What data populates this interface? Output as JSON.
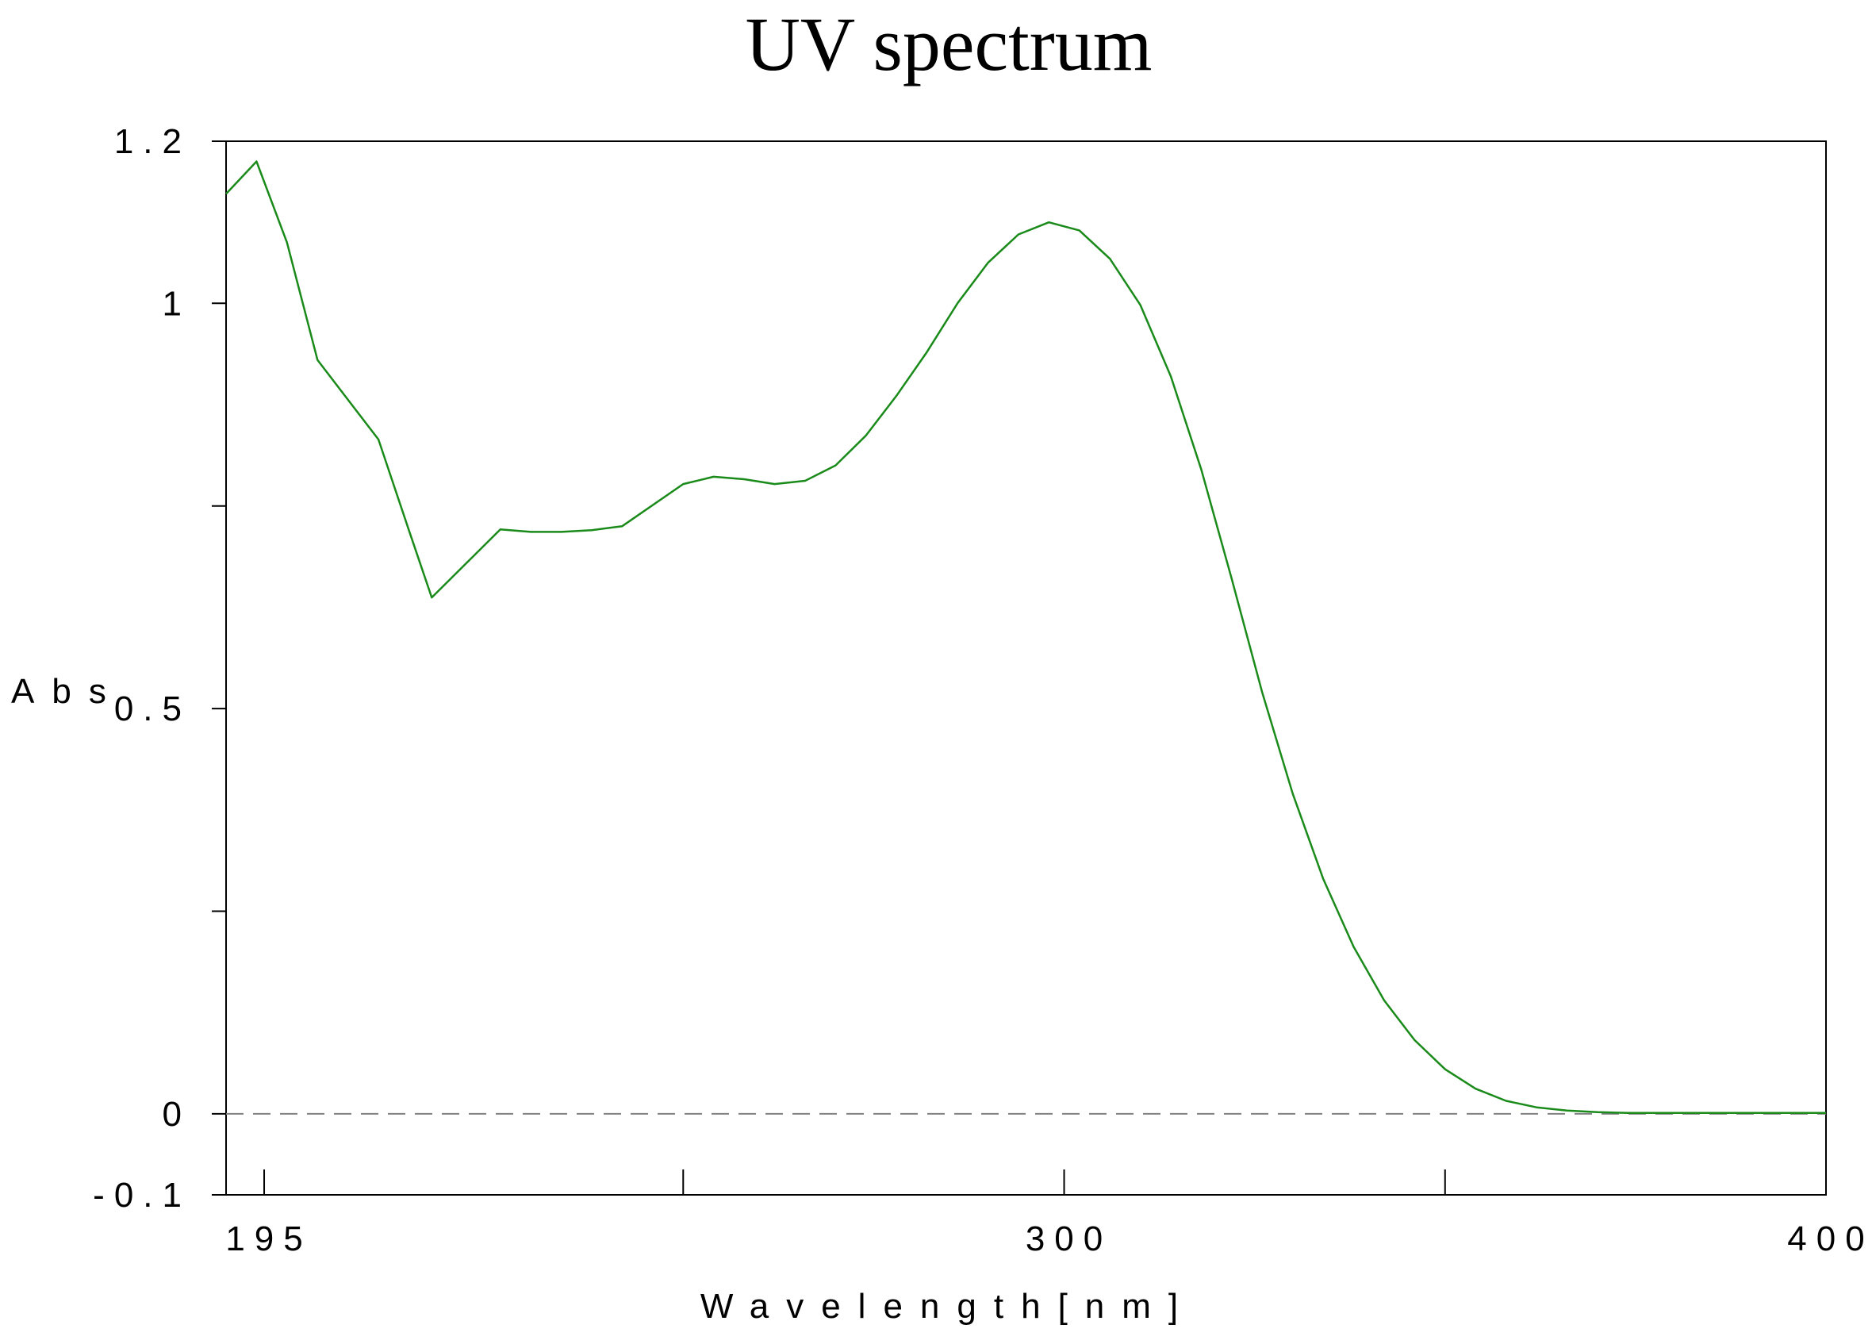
{
  "chart_data": {
    "type": "line",
    "title": "UV spectrum",
    "xlabel": "Wavelength[nm]",
    "ylabel": "Abs",
    "xlim": [
      190,
      400
    ],
    "ylim": [
      -0.1,
      1.2
    ],
    "x_tick_labels": [
      {
        "value": 195,
        "label": "195"
      },
      {
        "value": 300,
        "label": "300"
      },
      {
        "value": 400,
        "label": "400"
      }
    ],
    "x_minor_ticks": [
      250,
      350
    ],
    "y_tick_labels": [
      {
        "value": 1.2,
        "label": "1.2"
      },
      {
        "value": 1,
        "label": "1"
      },
      {
        "value": 0.5,
        "label": "0.5"
      },
      {
        "value": 0,
        "label": "0"
      },
      {
        "value": -0.1,
        "label": "-0.1"
      }
    ],
    "y_minor_ticks": [
      0.75,
      0.25
    ],
    "baseline": 0,
    "line_color": "#1a8a1a",
    "baseline_color": "#808080",
    "grid": false,
    "series": [
      {
        "x": [
          190,
          194,
          198,
          202,
          210,
          214,
          217,
          226,
          230,
          234,
          238,
          242,
          250,
          254,
          258,
          262,
          266,
          270,
          274,
          278,
          282,
          286,
          290,
          294,
          298,
          302,
          306,
          310,
          314,
          318,
          322,
          326,
          330,
          334,
          338,
          342,
          346,
          350,
          354,
          358,
          362,
          366,
          370,
          374,
          378,
          382,
          386,
          390,
          394,
          398,
          400
        ],
        "y": [
          1.135,
          1.175,
          1.075,
          0.93,
          0.832,
          0.72,
          0.637,
          0.721,
          0.718,
          0.718,
          0.72,
          0.725,
          0.777,
          0.786,
          0.783,
          0.777,
          0.781,
          0.8,
          0.837,
          0.886,
          0.94,
          1.0,
          1.05,
          1.085,
          1.1,
          1.09,
          1.055,
          0.998,
          0.91,
          0.795,
          0.66,
          0.52,
          0.395,
          0.29,
          0.206,
          0.14,
          0.091,
          0.055,
          0.031,
          0.016,
          0.008,
          0.004,
          0.002,
          0.001,
          0.001,
          0.001,
          0.001,
          0.001,
          0.001,
          0.001,
          0.001
        ]
      }
    ]
  }
}
